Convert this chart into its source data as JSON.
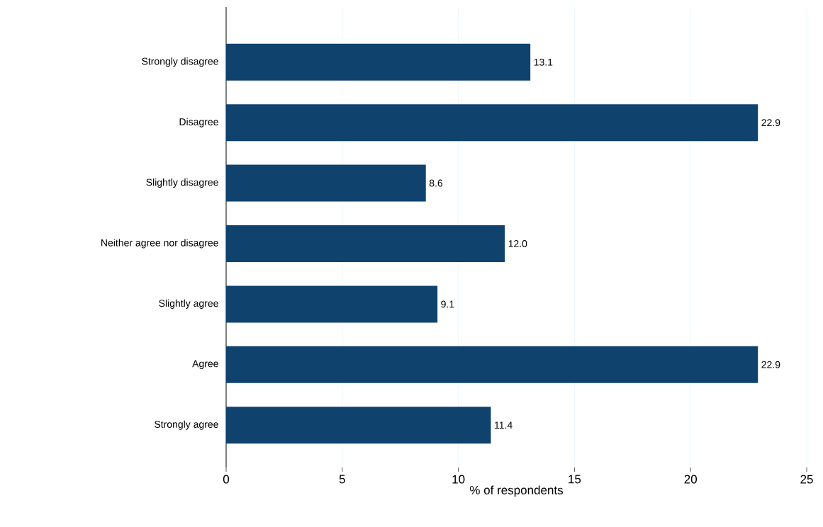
{
  "chart_data": {
    "type": "bar",
    "orientation": "horizontal",
    "categories": [
      "Strongly disagree",
      "Disagree",
      "Slightly disagree",
      "Neither agree nor disagree",
      "Slightly agree",
      "Agree",
      "Strongly agree"
    ],
    "values": [
      13.1,
      22.9,
      8.6,
      12.0,
      9.1,
      22.9,
      11.4
    ],
    "value_labels": [
      "13.1",
      "22.9",
      "8.6",
      "12.0",
      "9.1",
      "22.9",
      "11.4"
    ],
    "color": "#10426e",
    "xlim": [
      0,
      25
    ],
    "xticks": [
      0,
      5,
      10,
      15,
      20,
      25
    ],
    "xlabel": "% of respondents",
    "grid": "x"
  }
}
